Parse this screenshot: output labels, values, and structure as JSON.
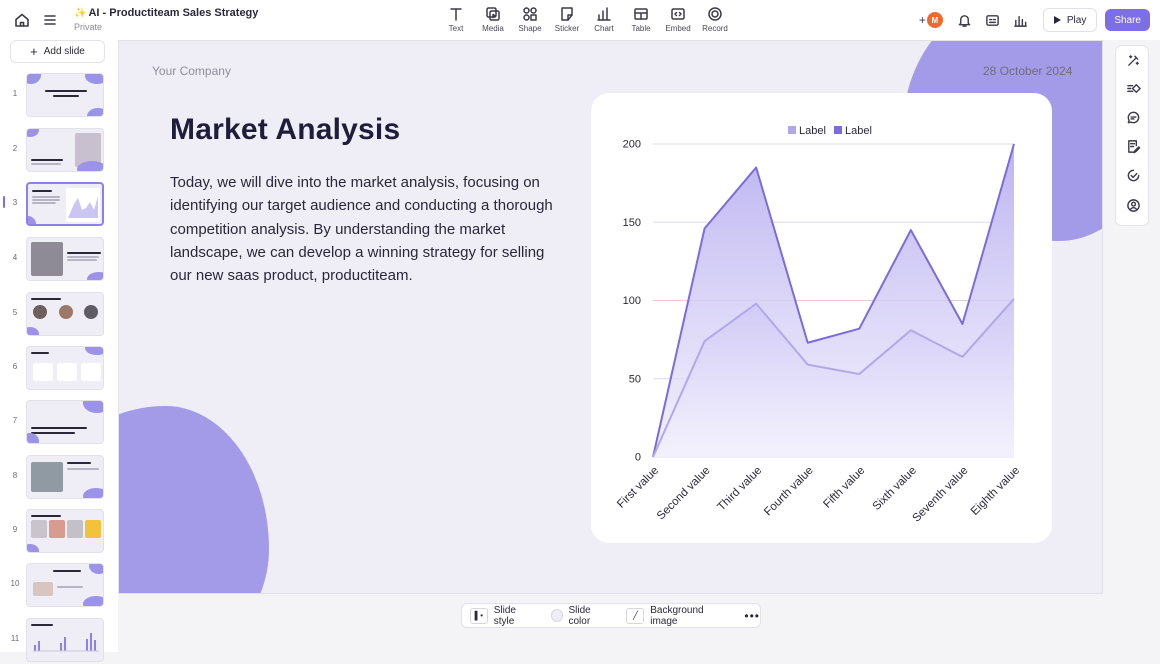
{
  "header": {
    "title": "AI - Productiteam Sales Strategy",
    "visibility": "Private",
    "tools": [
      {
        "label": "Text",
        "icon": "text-icon"
      },
      {
        "label": "Media",
        "icon": "media-icon"
      },
      {
        "label": "Shape",
        "icon": "shape-icon"
      },
      {
        "label": "Sticker",
        "icon": "sticker-icon"
      },
      {
        "label": "Chart",
        "icon": "chart-icon"
      },
      {
        "label": "Table",
        "icon": "table-icon"
      },
      {
        "label": "Embed",
        "icon": "embed-icon"
      },
      {
        "label": "Record",
        "icon": "record-icon"
      }
    ],
    "avatar_initial": "M",
    "play_label": "Play",
    "share_label": "Share"
  },
  "sidebar": {
    "add_slide_label": "Add slide",
    "slides": [
      {
        "number": "1"
      },
      {
        "number": "2"
      },
      {
        "number": "3"
      },
      {
        "number": "4"
      },
      {
        "number": "5"
      },
      {
        "number": "6"
      },
      {
        "number": "7"
      },
      {
        "number": "8"
      },
      {
        "number": "9"
      },
      {
        "number": "10"
      },
      {
        "number": "11"
      }
    ],
    "active_slide": 3
  },
  "slide": {
    "company": "Your Company",
    "date": "28 October 2024",
    "heading": "Market Analysis",
    "body": "Today, we will dive into the market analysis, focusing on identifying our target audience and conducting a thorough competition analysis. By understanding the market landscape, we can develop a winning strategy for selling our new saas product, productiteam."
  },
  "chart_data": {
    "type": "area",
    "categories": [
      "First value",
      "Second value",
      "Third value",
      "Fourth value",
      "Fifth value",
      "Sixth value",
      "Seventh value",
      "Eighth value"
    ],
    "series": [
      {
        "name": "Label",
        "values": [
          0,
          74,
          98,
          59,
          53,
          81,
          64,
          101
        ],
        "color": "#b1a8ec"
      },
      {
        "name": "Label",
        "values": [
          0,
          146,
          185,
          73,
          82,
          145,
          85,
          200
        ],
        "color": "#7b6bdc"
      }
    ],
    "ylim": [
      0,
      200
    ],
    "yticks": [
      0,
      50,
      100,
      150,
      200
    ],
    "grid": true,
    "legend": "top-center"
  },
  "bottom_bar": {
    "slide_style_label": "Slide style",
    "slide_color_label": "Slide color",
    "background_image_label": "Background image",
    "more_label": "•••"
  },
  "colors": {
    "accent": "#7c6ee6",
    "blob": "#a49be8",
    "slide_bg": "#efeef7"
  }
}
